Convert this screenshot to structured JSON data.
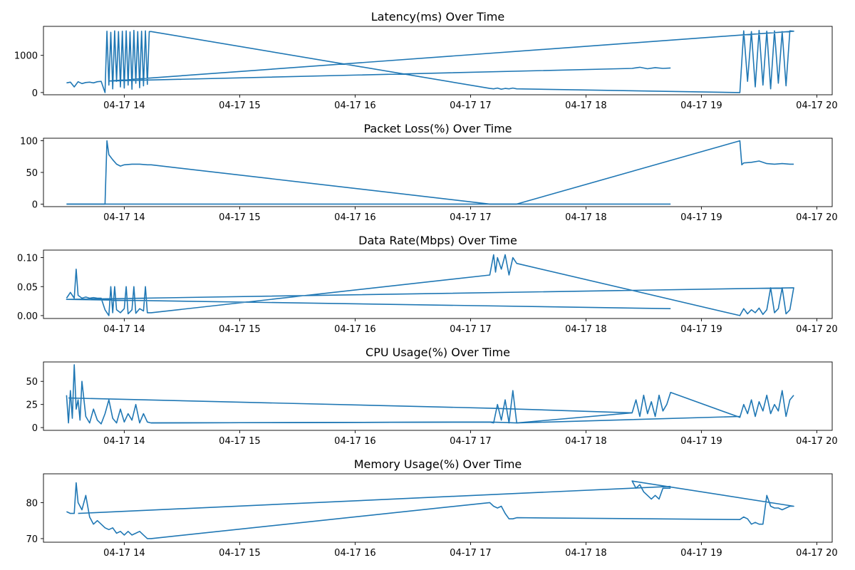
{
  "chart_data": [
    {
      "type": "line",
      "title": "Latency(ms) Over Time",
      "xlabel": "",
      "ylabel": "",
      "y_ticks": [
        0,
        1000
      ],
      "ylim": [
        -60,
        1780
      ],
      "x_ticks": [
        "04-17 14",
        "04-17 15",
        "04-17 16",
        "04-17 17",
        "04-17 18",
        "04-17 19",
        "04-17 20"
      ],
      "xlim": [
        "2023-04-17 13:18",
        "2023-04-17 20:08"
      ],
      "grid": false,
      "color": "#1f77b4",
      "series": [
        {
          "x": [
            "13:30",
            "13:32",
            "13:34",
            "13:36",
            "13:38",
            "13:40",
            "13:42",
            "13:44",
            "13:46",
            "13:48",
            "13:50",
            "13:51",
            "13:52",
            "13:53",
            "13:54",
            "13:55",
            "13:56",
            "13:57",
            "13:58",
            "13:59",
            "14:00",
            "14:01",
            "14:02",
            "14:03",
            "14:04",
            "14:05",
            "14:06",
            "14:07",
            "14:08",
            "14:09",
            "14:10",
            "14:11",
            "14:12",
            "14:13",
            "14:14",
            "17:10",
            "17:12",
            "17:14",
            "17:16",
            "17:18",
            "17:20",
            "17:22",
            "17:24",
            "19:20",
            "19:22",
            "19:24",
            "19:26",
            "19:28",
            "19:30",
            "19:32",
            "19:34",
            "19:36",
            "19:38",
            "19:40",
            "19:42",
            "19:44",
            "19:46",
            "19:48",
            "13:52",
            "18:24",
            "18:28",
            "18:32",
            "18:36",
            "18:40",
            "18:44"
          ],
          "y": [
            260,
            280,
            150,
            290,
            240,
            270,
            280,
            260,
            290,
            300,
            0,
            1650,
            200,
            1620,
            100,
            1660,
            300,
            1640,
            150,
            1650,
            120,
            1660,
            200,
            1630,
            90,
            1670,
            250,
            1640,
            130,
            1650,
            180,
            1660,
            220,
            1640,
            1640,
            110,
            100,
            120,
            90,
            110,
            100,
            120,
            100,
            0,
            1660,
            300,
            1640,
            150,
            1670,
            200,
            1650,
            100,
            1660,
            250,
            1640,
            180,
            1660,
            1650,
            310,
            650,
            680,
            640,
            670,
            650,
            660
          ],
          "name": ""
        }
      ]
    },
    {
      "type": "line",
      "title": "Packet Loss(%) Over Time",
      "xlabel": "",
      "ylabel": "",
      "y_ticks": [
        0,
        50,
        100
      ],
      "ylim": [
        -4,
        104
      ],
      "x_ticks": [
        "04-17 14",
        "04-17 15",
        "04-17 16",
        "04-17 17",
        "04-17 18",
        "04-17 19",
        "04-17 20"
      ],
      "xlim": [
        "2023-04-17 13:18",
        "2023-04-17 20:08"
      ],
      "grid": false,
      "color": "#1f77b4",
      "series": [
        {
          "x": [
            "13:30",
            "13:46",
            "13:50",
            "13:51",
            "13:52",
            "13:54",
            "13:56",
            "13:58",
            "14:00",
            "14:04",
            "14:08",
            "14:12",
            "14:14",
            "17:10",
            "17:24",
            "19:20",
            "19:21",
            "19:22",
            "19:26",
            "19:30",
            "19:34",
            "19:38",
            "19:42",
            "19:46",
            "19:48"
          ],
          "y": [
            0,
            0,
            0,
            100,
            78,
            70,
            63,
            60,
            62,
            63,
            63,
            62,
            62,
            0,
            0,
            100,
            62,
            65,
            66,
            68,
            64,
            63,
            64,
            63,
            63
          ],
          "name": ""
        },
        {
          "x": [
            "13:30",
            "18:44"
          ],
          "y": [
            0,
            0
          ],
          "name": ""
        }
      ]
    },
    {
      "type": "line",
      "title": "Data Rate(Mbps) Over Time",
      "xlabel": "",
      "ylabel": "",
      "y_ticks": [
        0.0,
        0.05,
        0.1
      ],
      "ylim": [
        -0.005,
        0.113
      ],
      "y_tick_labels": [
        "0.00",
        "0.05",
        "0.10"
      ],
      "x_ticks": [
        "04-17 14",
        "04-17 15",
        "04-17 16",
        "04-17 17",
        "04-17 18",
        "04-17 19",
        "04-17 20"
      ],
      "xlim": [
        "2023-04-17 13:18",
        "2023-04-17 20:08"
      ],
      "grid": false,
      "color": "#1f77b4",
      "series": [
        {
          "x": [
            "13:30",
            "13:32",
            "13:34",
            "13:35",
            "13:36",
            "13:38",
            "13:40",
            "13:42",
            "13:44",
            "13:46",
            "13:48",
            "13:50",
            "13:52",
            "13:53",
            "13:54",
            "13:55",
            "13:56",
            "13:58",
            "14:00",
            "14:01",
            "14:02",
            "14:04",
            "14:05",
            "14:06",
            "14:08",
            "14:10",
            "14:11",
            "14:12",
            "14:14",
            "17:10",
            "17:12",
            "17:13",
            "17:14",
            "17:16",
            "17:18",
            "17:20",
            "17:22",
            "17:24",
            "19:20",
            "19:22",
            "19:24",
            "19:26",
            "19:28",
            "19:30",
            "19:32",
            "19:34",
            "19:36",
            "19:38",
            "19:40",
            "19:42",
            "19:44",
            "19:46",
            "19:48",
            "13:30",
            "18:44"
          ],
          "y": [
            0.03,
            0.04,
            0.03,
            0.08,
            0.035,
            0.03,
            0.032,
            0.03,
            0.031,
            0.03,
            0.03,
            0.01,
            0.0,
            0.05,
            0.005,
            0.05,
            0.01,
            0.005,
            0.012,
            0.05,
            0.003,
            0.01,
            0.05,
            0.004,
            0.012,
            0.008,
            0.05,
            0.005,
            0.005,
            0.07,
            0.105,
            0.075,
            0.1,
            0.08,
            0.105,
            0.07,
            0.1,
            0.09,
            0.0,
            0.012,
            0.003,
            0.01,
            0.005,
            0.013,
            0.002,
            0.01,
            0.048,
            0.005,
            0.012,
            0.048,
            0.003,
            0.01,
            0.048,
            0.028,
            0.012
          ],
          "name": ""
        }
      ]
    },
    {
      "type": "line",
      "title": "CPU Usage(%) Over Time",
      "xlabel": "",
      "ylabel": "",
      "y_ticks": [
        0,
        25,
        50
      ],
      "ylim": [
        -3,
        71
      ],
      "x_ticks": [
        "04-17 14",
        "04-17 15",
        "04-17 16",
        "04-17 17",
        "04-17 18",
        "04-17 19",
        "04-17 20"
      ],
      "xlim": [
        "2023-04-17 13:18",
        "2023-04-17 20:08"
      ],
      "grid": false,
      "color": "#1f77b4",
      "series": [
        {
          "x": [
            "13:30",
            "13:31",
            "13:32",
            "13:33",
            "13:34",
            "13:35",
            "13:36",
            "13:37",
            "13:38",
            "13:40",
            "13:42",
            "13:44",
            "13:46",
            "13:48",
            "13:50",
            "13:52",
            "13:54",
            "13:56",
            "13:58",
            "14:00",
            "14:02",
            "14:04",
            "14:06",
            "14:08",
            "14:10",
            "14:12",
            "14:14",
            "17:10",
            "17:12",
            "17:14",
            "17:16",
            "17:18",
            "17:20",
            "17:22",
            "17:24",
            "18:24",
            "18:26",
            "18:28",
            "18:30",
            "18:32",
            "18:34",
            "18:36",
            "18:38",
            "18:40",
            "18:42",
            "18:44",
            "19:20",
            "19:22",
            "19:24",
            "19:26",
            "19:28",
            "19:30",
            "19:32",
            "19:34",
            "19:36",
            "19:38",
            "19:40",
            "19:42",
            "19:44",
            "19:46",
            "19:48"
          ],
          "y": [
            35,
            5,
            40,
            10,
            68,
            20,
            30,
            8,
            50,
            12,
            5,
            20,
            8,
            4,
            15,
            30,
            10,
            5,
            20,
            6,
            15,
            8,
            25,
            5,
            15,
            6,
            5,
            6,
            5,
            25,
            8,
            30,
            5,
            40,
            5,
            16,
            30,
            12,
            35,
            15,
            28,
            12,
            35,
            18,
            25,
            38,
            11,
            25,
            15,
            30,
            12,
            28,
            18,
            35,
            15,
            25,
            18,
            40,
            12,
            30,
            35
          ],
          "name": ""
        },
        {
          "x": [
            "13:31",
            "17:10",
            "18:24"
          ],
          "y": [
            32,
            21,
            16
          ],
          "name": ""
        },
        {
          "x": [
            "14:14",
            "17:10",
            "17:24",
            "19:20"
          ],
          "y": [
            5,
            6,
            5,
            12
          ],
          "name": ""
        }
      ]
    },
    {
      "type": "line",
      "title": "Memory Usage(%) Over Time",
      "xlabel": "",
      "ylabel": "",
      "y_ticks": [
        70,
        80
      ],
      "ylim": [
        69,
        88
      ],
      "x_ticks": [
        "04-17 14",
        "04-17 15",
        "04-17 16",
        "04-17 17",
        "04-17 18",
        "04-17 19",
        "04-17 20"
      ],
      "xlim": [
        "2023-04-17 13:18",
        "2023-04-17 20:08"
      ],
      "grid": false,
      "color": "#1f77b4",
      "series": [
        {
          "x": [
            "13:30",
            "13:32",
            "13:34",
            "13:35",
            "13:36",
            "13:38",
            "13:40",
            "13:42",
            "13:44",
            "13:46",
            "13:48",
            "13:50",
            "13:52",
            "13:54",
            "13:56",
            "13:58",
            "14:00",
            "14:02",
            "14:04",
            "14:06",
            "14:08",
            "14:10",
            "14:12",
            "14:14",
            "17:10",
            "17:12",
            "17:14",
            "17:16",
            "17:18",
            "17:20",
            "17:22",
            "17:24",
            "19:20",
            "19:22",
            "19:24",
            "19:26",
            "19:28",
            "19:30",
            "19:32",
            "19:34",
            "19:36",
            "19:38",
            "19:40",
            "19:42",
            "19:44",
            "19:46",
            "19:48",
            "18:24",
            "18:26",
            "18:28",
            "18:30",
            "18:32",
            "18:34",
            "18:36",
            "18:38",
            "18:40",
            "18:42",
            "18:44"
          ],
          "y": [
            77.5,
            77,
            77,
            85.5,
            80,
            78,
            82,
            76,
            74,
            75,
            74,
            73,
            72.5,
            73,
            71.5,
            72,
            71,
            72,
            71,
            71.5,
            72,
            71,
            70,
            70,
            80,
            79,
            78.5,
            79,
            77,
            75.5,
            75.5,
            75.8,
            75.3,
            76,
            75.5,
            74,
            74.5,
            74,
            74,
            82,
            79,
            78.5,
            78.5,
            78,
            78.5,
            79,
            79,
            86,
            84,
            85,
            83,
            82,
            81,
            82,
            81,
            84,
            84,
            84
          ],
          "name": ""
        },
        {
          "x": [
            "13:36",
            "18:44"
          ],
          "y": [
            77,
            84.5
          ],
          "name": ""
        }
      ]
    }
  ]
}
